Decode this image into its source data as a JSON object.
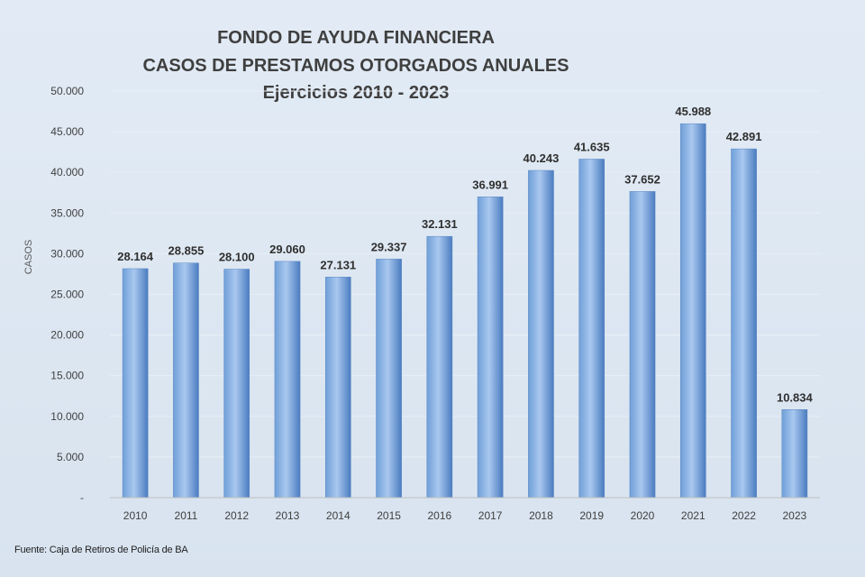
{
  "chart_data": {
    "type": "bar",
    "title": [
      "FONDO DE AYUDA FINANCIERA",
      "CASOS DE PRESTAMOS  OTORGADOS  ANUALES",
      "Ejercicios  2010 - 2023"
    ],
    "xlabel": "",
    "ylabel": "CASOS",
    "ylim": [
      0,
      50000
    ],
    "yticks": [
      0,
      5000,
      10000,
      15000,
      20000,
      25000,
      30000,
      35000,
      40000,
      45000,
      50000
    ],
    "ytick_labels": [
      "-",
      "5.000",
      "10.000",
      "15.000",
      "20.000",
      "25.000",
      "30.000",
      "35.000",
      "40.000",
      "45.000",
      "50.000"
    ],
    "grid": true,
    "categories": [
      "2010",
      "2011",
      "2012",
      "2013",
      "2014",
      "2015",
      "2016",
      "2017",
      "2018",
      "2019",
      "2020",
      "2021",
      "2022",
      "2023"
    ],
    "values": [
      28164,
      28855,
      28100,
      29060,
      27131,
      29337,
      32131,
      36991,
      40243,
      41635,
      37652,
      45988,
      42891,
      10834
    ],
    "value_labels": [
      "28.164",
      "28.855",
      "28.100",
      "29.060",
      "27.131",
      "29.337",
      "32.131",
      "36.991",
      "40.243",
      "41.635",
      "37.652",
      "45.988",
      "42.891",
      "10.834"
    ],
    "colors": {
      "bar_light": "#a9c8ef",
      "bar_mid": "#6f9fd8",
      "bar_dark": "#4a7cc0",
      "gridline": "#e8eef6",
      "axis": "#bfbfbf"
    }
  },
  "source_note": "Fuente: Caja de Retiros de Policía de BA"
}
